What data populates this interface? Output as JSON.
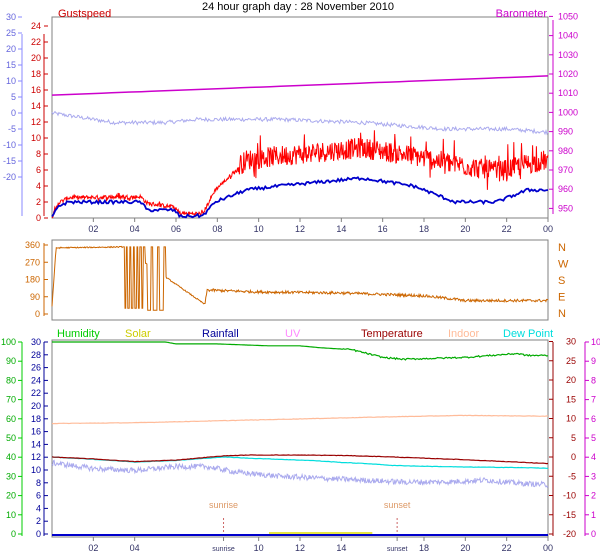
{
  "title": "24 hour graph day : 28 November 2010",
  "chart_data": [
    {
      "type": "line",
      "name": "wind-baro",
      "left_axis_label": "Gustspeed",
      "right_axis_label": "Barometer",
      "x_ticks": [
        "02",
        "04",
        "06",
        "08",
        "10",
        "12",
        "14",
        "16",
        "18",
        "20",
        "22",
        "00"
      ],
      "y_left_temp_ticks": [
        30,
        25,
        20,
        15,
        10,
        5,
        0,
        -5,
        -10,
        -15,
        -20
      ],
      "y_left_wind_ticks": [
        24,
        22,
        20,
        18,
        16,
        14,
        12,
        10,
        8,
        6,
        4,
        2,
        0
      ],
      "y_left_wind_range": [
        0,
        25
      ],
      "y_right_ticks": [
        1050,
        1040,
        1030,
        1020,
        1010,
        1000,
        990,
        980,
        970,
        960,
        950
      ],
      "y_right_range": [
        945,
        1050
      ],
      "colors": {
        "gust": "#ff0000",
        "wind": "#0000cc",
        "baro": "#cc00cc",
        "temp": "#aaaaee"
      },
      "barometer": {
        "x": [
          0,
          24
        ],
        "y": [
          1009,
          1019
        ]
      },
      "temperature_profile": {
        "x": [
          0,
          3,
          5.5,
          7,
          11,
          15,
          17,
          19,
          22,
          24
        ],
        "y": [
          0,
          -3,
          -3,
          -2,
          -2,
          -3,
          -4,
          -5,
          -5,
          -6
        ]
      },
      "wind_profile": {
        "x": [
          0,
          0.3,
          0.8,
          4.3,
          4.6,
          5.9,
          6.2,
          7.3,
          7.9,
          9.4,
          11,
          15,
          17.5,
          19.5,
          21.5,
          23,
          24
        ],
        "y": [
          0,
          1.5,
          2,
          2,
          1,
          1,
          0.2,
          0.3,
          2,
          3.5,
          4,
          5,
          4,
          2,
          2,
          3.5,
          3.5
        ]
      },
      "gust_profile": {
        "x": [
          0,
          0.3,
          0.8,
          4.3,
          4.6,
          5.9,
          6.2,
          7.3,
          7.9,
          9.4,
          11,
          15,
          17.5,
          19.5,
          21.5,
          23,
          24
        ],
        "y": [
          0,
          1.8,
          2.5,
          2.6,
          1.8,
          1.3,
          0.5,
          0.5,
          3.5,
          7,
          7.5,
          8.5,
          7.5,
          6.5,
          5.5,
          6.5,
          7
        ]
      }
    },
    {
      "type": "line",
      "name": "wind-direction",
      "y_ticks": [
        360,
        270,
        180,
        90,
        0
      ],
      "y_range": [
        0,
        360
      ],
      "compass_labels": [
        "N",
        "W",
        "S",
        "E",
        "N"
      ],
      "color": "#cc6600",
      "profile": {
        "x": [
          0,
          0.2,
          3.4,
          7.4,
          7.5,
          10,
          14,
          18,
          19.7,
          19.8,
          24
        ],
        "y": [
          40,
          345,
          350,
          50,
          125,
          115,
          110,
          95,
          75,
          70,
          70
        ]
      }
    },
    {
      "type": "line",
      "name": "temp-humidity",
      "legend": [
        {
          "label": "Humidity",
          "color": "#00cc00"
        },
        {
          "label": "Solar",
          "color": "#cccc00"
        },
        {
          "label": "Rainfall",
          "color": "#000099"
        },
        {
          "label": "UV",
          "color": "#ff88ff"
        },
        {
          "label": "Temperature",
          "color": "#990000"
        },
        {
          "label": "Indoor",
          "color": "#ffbb99"
        },
        {
          "label": "Dew Point",
          "color": "#00dddd"
        }
      ],
      "x_ticks": [
        "02",
        "04",
        "sunrise",
        "10",
        "12",
        "14",
        "sunset",
        "18",
        "20",
        "22",
        "00"
      ],
      "sunrise_label": "sunrise",
      "sunset_label": "sunset",
      "sunrise_hour": 8.3,
      "sunset_hour": 16.7,
      "y_humidity_ticks": [
        100,
        90,
        80,
        70,
        60,
        50,
        40,
        30,
        20,
        10,
        0
      ],
      "y_temp_left_ticks": [
        30,
        28,
        26,
        24,
        22,
        20,
        18,
        16,
        14,
        12,
        10,
        8,
        6,
        4,
        2,
        0
      ],
      "y_temp_right_ticks": [
        30,
        25,
        20,
        15,
        10,
        5,
        0,
        -5,
        -10,
        -15,
        -20
      ],
      "y_uv_ticks": [
        10,
        9,
        8,
        7,
        6,
        5,
        4,
        3,
        2,
        1,
        0
      ],
      "humidity": {
        "x": [
          0,
          5.5,
          6,
          8,
          10.5,
          12,
          13,
          14.5,
          16,
          17,
          20,
          22.5,
          23,
          24
        ],
        "y": [
          100,
          100,
          99,
          99,
          98,
          98,
          97,
          96,
          92,
          91,
          92,
          94,
          93,
          93
        ]
      },
      "indoor": {
        "x": [
          0,
          4,
          8,
          12,
          16,
          20,
          24
        ],
        "y": [
          18.7,
          18.9,
          19.4,
          19.9,
          20.4,
          20.8,
          20.6
        ]
      },
      "temperature": {
        "x": [
          0,
          2,
          4,
          6,
          8.3,
          9.5,
          12,
          14,
          16,
          18,
          20,
          22,
          24
        ],
        "y": [
          0,
          -0.5,
          -1.2,
          -0.8,
          0.3,
          0.5,
          0.5,
          0.4,
          0.1,
          -0.3,
          -0.7,
          -1.2,
          -1.7
        ]
      },
      "dew_point": {
        "x": [
          0,
          2,
          4,
          6,
          8.3,
          9.5,
          11,
          12.5,
          14,
          15.5,
          16.5,
          18,
          20,
          22,
          24
        ],
        "y": [
          0,
          -0.6,
          -1.3,
          -0.9,
          0,
          -0.3,
          -0.6,
          -0.9,
          -1.4,
          -1.8,
          -2.2,
          -2.4,
          -2.6,
          -2.7,
          -2.9
        ]
      },
      "wind_temp": {
        "x": [
          0,
          2,
          4,
          6,
          7.5,
          9,
          11,
          13,
          15,
          17,
          19,
          21,
          22.5,
          24
        ],
        "y": [
          -1.5,
          -3,
          -3.5,
          -2.5,
          -2.5,
          -4,
          -5,
          -5.5,
          -6,
          -6.5,
          -6.5,
          -6,
          -6.8,
          -7.2
        ]
      }
    }
  ]
}
